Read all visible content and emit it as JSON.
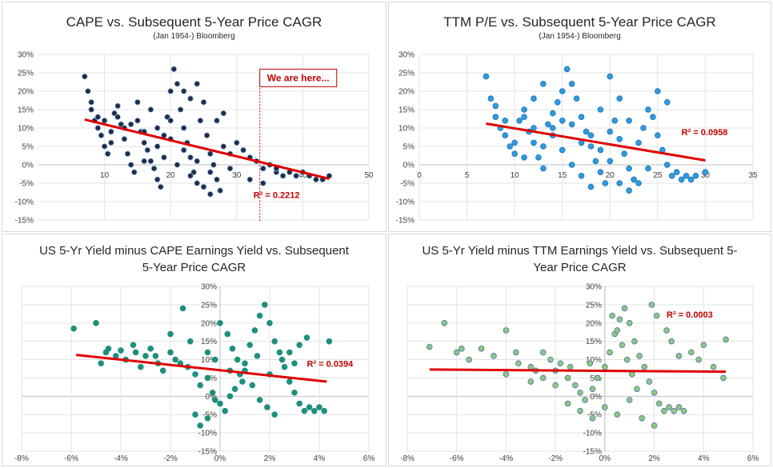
{
  "chart_data": [
    {
      "type": "scatter",
      "title": "CAPE vs. Subsequent 5-Year Price CAGR",
      "subtitle": "(Jan 1954-) Bloomberg",
      "x_ticks": [
        "10",
        "20",
        "30",
        "40",
        "50"
      ],
      "y_ticks": [
        "30%",
        "25%",
        "20%",
        "15%",
        "10%",
        "5%",
        "0%",
        "-5%",
        "-10%",
        "-15%"
      ],
      "xlim": [
        0,
        50
      ],
      "ylim": [
        -15,
        30
      ],
      "marker_color": "#1f2d4a",
      "marker_edge": "#9dc3e6",
      "trendline": {
        "x": [
          7,
          44
        ],
        "y": [
          12.3,
          -3.8
        ],
        "color": "#e00000"
      },
      "r_squared": "R² = 0.2212",
      "annotation": {
        "label": "We are here...",
        "x": 33.5
      },
      "points": [
        [
          7,
          24
        ],
        [
          7.5,
          20
        ],
        [
          8,
          15
        ],
        [
          8.5,
          12
        ],
        [
          9,
          10
        ],
        [
          9.5,
          8
        ],
        [
          10,
          5
        ],
        [
          10.5,
          3
        ],
        [
          11,
          9
        ],
        [
          11.5,
          14
        ],
        [
          12,
          16
        ],
        [
          12.5,
          11
        ],
        [
          13,
          7
        ],
        [
          13.5,
          3
        ],
        [
          14,
          0
        ],
        [
          14.5,
          -2
        ],
        [
          15,
          12
        ],
        [
          15.5,
          9
        ],
        [
          16,
          6
        ],
        [
          16.5,
          4
        ],
        [
          17,
          1
        ],
        [
          17.5,
          -1
        ],
        [
          18,
          -4
        ],
        [
          18.5,
          -6
        ],
        [
          19,
          8
        ],
        [
          19.5,
          13
        ],
        [
          20,
          20
        ],
        [
          20.5,
          26
        ],
        [
          21,
          22
        ],
        [
          21.5,
          15
        ],
        [
          22,
          10
        ],
        [
          22.5,
          6
        ],
        [
          23,
          2
        ],
        [
          23.5,
          -2
        ],
        [
          24,
          -5
        ],
        [
          24.5,
          12
        ],
        [
          25,
          17
        ],
        [
          25.5,
          8
        ],
        [
          26,
          3
        ],
        [
          26.5,
          0
        ],
        [
          27,
          -4
        ],
        [
          27.5,
          -7
        ],
        [
          28,
          5
        ],
        [
          29,
          3
        ],
        [
          30,
          6
        ],
        [
          31,
          4
        ],
        [
          32,
          2
        ],
        [
          33,
          1
        ],
        [
          34,
          -1
        ],
        [
          35,
          0
        ],
        [
          36,
          -2
        ],
        [
          37,
          -3
        ],
        [
          38,
          -2
        ],
        [
          39,
          -3
        ],
        [
          40,
          -2
        ],
        [
          41,
          -3
        ],
        [
          42,
          -4
        ],
        [
          43,
          -4
        ],
        [
          44,
          -3
        ],
        [
          12,
          13
        ],
        [
          14,
          11
        ],
        [
          16,
          9
        ],
        [
          18,
          10
        ],
        [
          20,
          7
        ],
        [
          22,
          4
        ],
        [
          24,
          1
        ],
        [
          26,
          -2
        ],
        [
          19,
          2
        ],
        [
          21,
          0
        ],
        [
          23,
          -3
        ],
        [
          17,
          15
        ],
        [
          15,
          17
        ],
        [
          13,
          10
        ],
        [
          11,
          6
        ],
        [
          10,
          12
        ],
        [
          9,
          13
        ],
        [
          8,
          17
        ],
        [
          22,
          20
        ],
        [
          23,
          18
        ],
        [
          24,
          22
        ],
        [
          20,
          12
        ],
        [
          18,
          5
        ],
        [
          16,
          1
        ],
        [
          25,
          -6
        ],
        [
          26,
          -8
        ],
        [
          27,
          12
        ],
        [
          28,
          14
        ],
        [
          29,
          -1
        ],
        [
          32,
          -4
        ],
        [
          34,
          -5
        ],
        [
          36,
          -1
        ]
      ]
    },
    {
      "type": "scatter",
      "title": "TTM P/E vs. Subsequent 5-Year Price CAGR",
      "subtitle": "(Jan 1954-) Bloomberg",
      "x_ticks": [
        "0",
        "5",
        "10",
        "15",
        "20",
        "25",
        "30",
        "35"
      ],
      "y_ticks": [
        "30%",
        "25%",
        "20%",
        "15%",
        "10%",
        "5%",
        "0%",
        "-5%",
        "-10%",
        "-15%"
      ],
      "xlim": [
        0,
        35
      ],
      "ylim": [
        -15,
        30
      ],
      "marker_color": "#2e9be0",
      "marker_edge": "#1f6fb0",
      "trendline": {
        "x": [
          7,
          30
        ],
        "y": [
          11.2,
          1.2
        ],
        "color": "#e00000"
      },
      "r_squared": "R² = 0.0958",
      "points": [
        [
          7,
          24
        ],
        [
          7.5,
          18
        ],
        [
          8,
          13
        ],
        [
          8.5,
          10
        ],
        [
          9,
          8
        ],
        [
          9.5,
          5
        ],
        [
          10,
          3
        ],
        [
          10.5,
          12
        ],
        [
          11,
          15
        ],
        [
          11.5,
          9
        ],
        [
          12,
          6
        ],
        [
          12.5,
          2
        ],
        [
          13,
          -1
        ],
        [
          13.5,
          11
        ],
        [
          14,
          14
        ],
        [
          14.5,
          17
        ],
        [
          15,
          20
        ],
        [
          15.5,
          26
        ],
        [
          16,
          22
        ],
        [
          16.5,
          18
        ],
        [
          17,
          13
        ],
        [
          17.5,
          9
        ],
        [
          18,
          5
        ],
        [
          18.5,
          1
        ],
        [
          19,
          -2
        ],
        [
          19.5,
          -5
        ],
        [
          20,
          9
        ],
        [
          20.5,
          12
        ],
        [
          21,
          7
        ],
        [
          21.5,
          3
        ],
        [
          22,
          -1
        ],
        [
          22.5,
          -4
        ],
        [
          23,
          6
        ],
        [
          23.5,
          10
        ],
        [
          24,
          15
        ],
        [
          24.5,
          13
        ],
        [
          25,
          8
        ],
        [
          25.5,
          4
        ],
        [
          26,
          0
        ],
        [
          26.5,
          -3
        ],
        [
          27,
          -2
        ],
        [
          27.5,
          -4
        ],
        [
          28,
          -3
        ],
        [
          28.5,
          -4
        ],
        [
          29,
          -3
        ],
        [
          30,
          -2
        ],
        [
          12,
          18
        ],
        [
          13,
          22
        ],
        [
          14,
          8
        ],
        [
          15,
          4
        ],
        [
          16,
          0
        ],
        [
          17,
          -3
        ],
        [
          18,
          -6
        ],
        [
          19,
          15
        ],
        [
          20,
          24
        ],
        [
          21,
          18
        ],
        [
          22,
          12
        ],
        [
          16,
          11
        ],
        [
          15,
          12
        ],
        [
          14,
          10
        ],
        [
          17,
          6
        ],
        [
          18,
          8
        ],
        [
          19,
          4
        ],
        [
          20,
          1
        ],
        [
          21,
          -5
        ],
        [
          22,
          -7
        ],
        [
          8,
          16
        ],
        [
          9,
          12
        ],
        [
          10,
          6
        ],
        [
          11,
          2
        ],
        [
          24,
          -1
        ],
        [
          25,
          20
        ],
        [
          26,
          17
        ],
        [
          23,
          -5
        ],
        [
          13,
          5
        ],
        [
          12,
          10
        ],
        [
          11,
          13
        ]
      ]
    },
    {
      "type": "scatter",
      "title": "US 5-Yr Yield minus CAPE Earnings Yield vs. Subsequent 5-Year Price CAGR",
      "x_ticks": [
        "-8%",
        "-6%",
        "-4%",
        "-2%",
        "0%",
        "2%",
        "4%",
        "6%"
      ],
      "y_ticks": [
        "30%",
        "25%",
        "20%",
        "15%",
        "10%",
        "5%",
        "0%",
        "-5%",
        "-10%",
        "-15%"
      ],
      "xlim": [
        -8,
        6
      ],
      "ylim": [
        -15,
        30
      ],
      "marker_color": "#1e8f7e",
      "marker_edge": "#1e8f7e",
      "trendline": {
        "x": [
          -5.8,
          4.3
        ],
        "y": [
          11.3,
          4.0
        ],
        "color": "#e00000"
      },
      "r_squared": "R² = 0.0394",
      "points": [
        [
          -5.9,
          18.5
        ],
        [
          -5,
          20
        ],
        [
          -4.8,
          9
        ],
        [
          -4.5,
          13
        ],
        [
          -4.2,
          11
        ],
        [
          -4,
          12.5
        ],
        [
          -3.8,
          10
        ],
        [
          -3.5,
          14
        ],
        [
          -3.2,
          8
        ],
        [
          -3,
          11
        ],
        [
          -2.8,
          13
        ],
        [
          -2.5,
          9
        ],
        [
          -2.3,
          7
        ],
        [
          -2,
          12
        ],
        [
          -1.8,
          10
        ],
        [
          -1.5,
          24
        ],
        [
          -1.3,
          8
        ],
        [
          -1,
          6
        ],
        [
          -0.8,
          3
        ],
        [
          -0.5,
          5
        ],
        [
          -0.3,
          1
        ],
        [
          0,
          -2
        ],
        [
          0.2,
          -4
        ],
        [
          0.4,
          0
        ],
        [
          0.6,
          2
        ],
        [
          0.8,
          6
        ],
        [
          1,
          9
        ],
        [
          1.2,
          14
        ],
        [
          1.4,
          18
        ],
        [
          1.6,
          22
        ],
        [
          1.8,
          25
        ],
        [
          2,
          20
        ],
        [
          2.2,
          15
        ],
        [
          2.4,
          12
        ],
        [
          2.6,
          8
        ],
        [
          2.8,
          4
        ],
        [
          3,
          1
        ],
        [
          3.2,
          -2
        ],
        [
          3.4,
          -4
        ],
        [
          3.6,
          -3
        ],
        [
          3.8,
          -4
        ],
        [
          4,
          -3
        ],
        [
          4.2,
          -4
        ],
        [
          4.4,
          15
        ],
        [
          -0.5,
          -6
        ],
        [
          -0.8,
          -8
        ],
        [
          -1,
          -5
        ],
        [
          0,
          20
        ],
        [
          0.3,
          17
        ],
        [
          0.5,
          13
        ],
        [
          0.7,
          10
        ],
        [
          1,
          7
        ],
        [
          1.3,
          3
        ],
        [
          1.6,
          -1
        ],
        [
          1.9,
          -3
        ],
        [
          2.2,
          -5
        ],
        [
          2.5,
          10
        ],
        [
          2.8,
          12
        ],
        [
          3.2,
          14
        ],
        [
          3.5,
          16
        ],
        [
          -0.2,
          10
        ],
        [
          -0.5,
          12
        ],
        [
          -0.2,
          -1
        ],
        [
          0.4,
          7
        ],
        [
          0.9,
          4
        ],
        [
          1.5,
          11
        ],
        [
          2,
          6
        ],
        [
          3,
          9
        ],
        [
          -3.4,
          12
        ],
        [
          -2.6,
          11
        ],
        [
          -1.6,
          9
        ],
        [
          -4.6,
          12
        ],
        [
          -2,
          17
        ],
        [
          -1.2,
          15
        ]
      ]
    },
    {
      "type": "scatter",
      "title": "US 5-Yr Yield minus TTM Earnings Yield vs. Subsequent 5-Year Price CAGR",
      "x_ticks": [
        "-8%",
        "-6%",
        "-4%",
        "-2%",
        "0%",
        "2%",
        "4%",
        "6%"
      ],
      "y_ticks": [
        "30%",
        "25%",
        "20%",
        "15%",
        "10%",
        "5%",
        "0%",
        "-5%",
        "-10%",
        "-15%"
      ],
      "xlim": [
        -8,
        6
      ],
      "ylim": [
        -15,
        30
      ],
      "marker_color": "#8cc97a",
      "marker_edge": "#4f6fb0",
      "trendline": {
        "x": [
          -7.1,
          4.9
        ],
        "y": [
          7.3,
          6.7
        ],
        "color": "#e00000"
      },
      "r_squared": "R² = 0.0003",
      "points": [
        [
          -7.1,
          13.5
        ],
        [
          -6.5,
          20
        ],
        [
          -6,
          12
        ],
        [
          -5.5,
          10
        ],
        [
          -5,
          13
        ],
        [
          -4.5,
          11
        ],
        [
          -4,
          18
        ],
        [
          -3.5,
          9
        ],
        [
          -3,
          8
        ],
        [
          -2.5,
          12
        ],
        [
          -2,
          7
        ],
        [
          -1.5,
          5
        ],
        [
          -1.2,
          3
        ],
        [
          -1,
          1
        ],
        [
          -0.8,
          -1
        ],
        [
          -0.5,
          2
        ],
        [
          -0.3,
          5
        ],
        [
          0,
          8
        ],
        [
          0.2,
          12
        ],
        [
          0.4,
          17
        ],
        [
          0.6,
          21
        ],
        [
          0.8,
          24
        ],
        [
          1,
          20
        ],
        [
          1.2,
          15
        ],
        [
          1.4,
          11
        ],
        [
          1.6,
          8
        ],
        [
          1.8,
          4
        ],
        [
          2,
          1
        ],
        [
          2.2,
          -2
        ],
        [
          2.4,
          -4
        ],
        [
          2.6,
          -3
        ],
        [
          2.8,
          -4
        ],
        [
          3,
          -3
        ],
        [
          3.2,
          -4
        ],
        [
          3.5,
          12
        ],
        [
          3.8,
          10
        ],
        [
          4,
          14
        ],
        [
          4.4,
          8
        ],
        [
          4.8,
          5
        ],
        [
          4.9,
          15.5
        ],
        [
          -1.5,
          -2
        ],
        [
          -1,
          -4
        ],
        [
          -0.5,
          -6
        ],
        [
          0,
          -3
        ],
        [
          0.5,
          -5
        ],
        [
          1,
          -1
        ],
        [
          1.5,
          -6
        ],
        [
          2,
          -8
        ],
        [
          0.3,
          22
        ],
        [
          0.5,
          18
        ],
        [
          0.7,
          14
        ],
        [
          0.9,
          10
        ],
        [
          1.1,
          6
        ],
        [
          1.3,
          2
        ],
        [
          2.5,
          18
        ],
        [
          2.7,
          15
        ],
        [
          3,
          11
        ],
        [
          -2,
          3
        ],
        [
          -2.5,
          5
        ],
        [
          -3,
          4
        ],
        [
          -4,
          6
        ],
        [
          -5.8,
          13
        ],
        [
          -3.6,
          12
        ],
        [
          -2.2,
          10
        ],
        [
          -1.8,
          9
        ],
        [
          -0.6,
          9
        ],
        [
          1.9,
          25
        ],
        [
          2.1,
          22
        ],
        [
          -2.8,
          7
        ],
        [
          -1.4,
          8
        ]
      ]
    }
  ]
}
